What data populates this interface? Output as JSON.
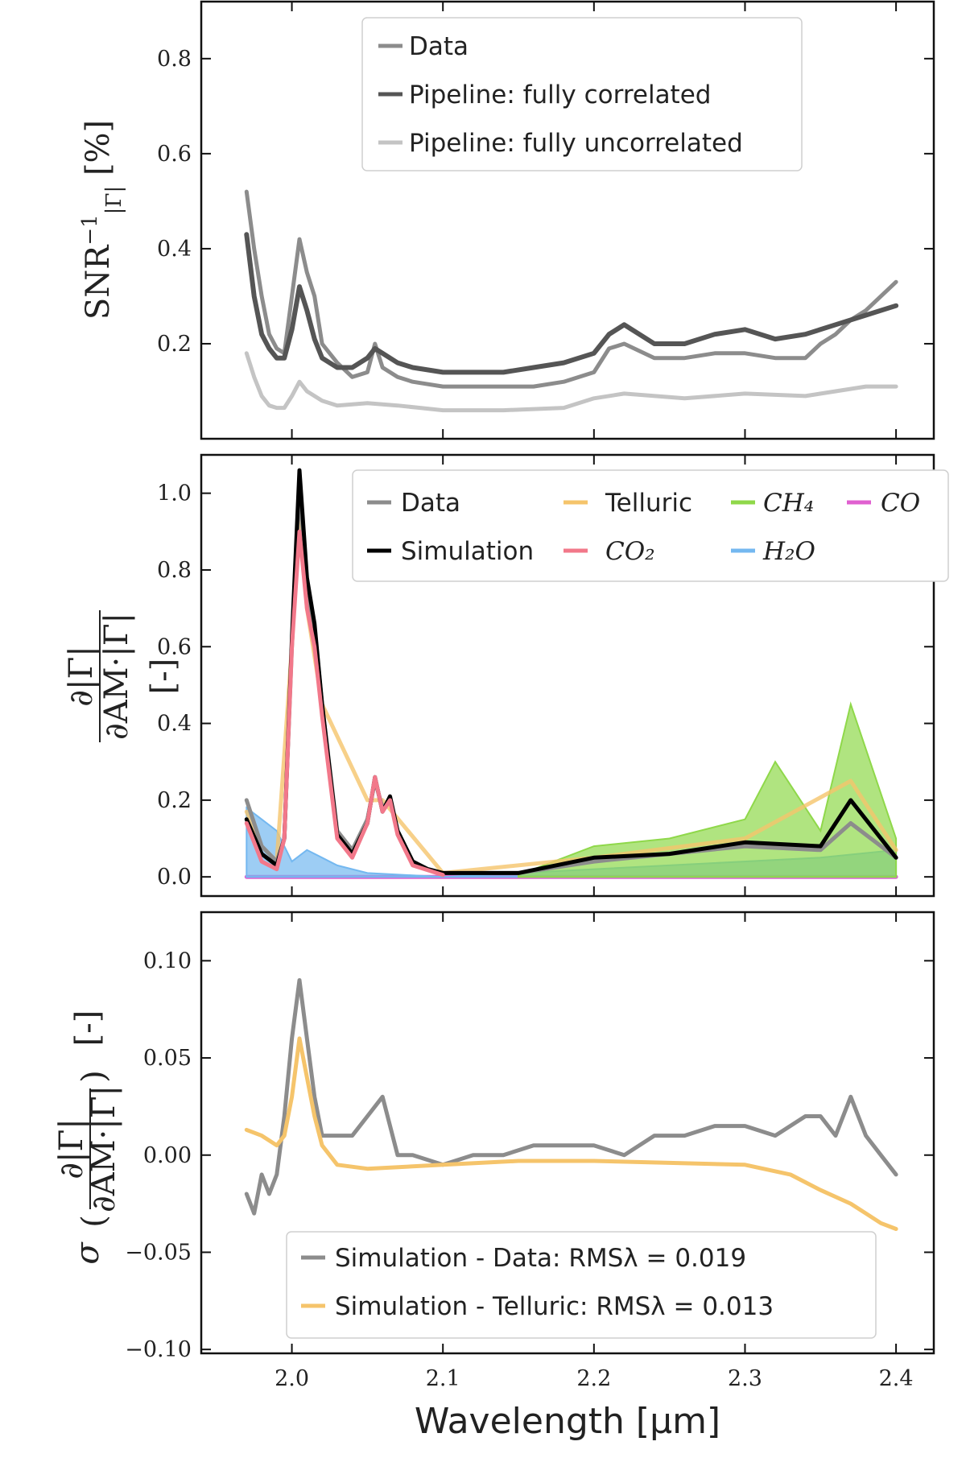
{
  "xaxis": {
    "label": "Wavelength [μm]",
    "range": [
      1.94,
      2.425
    ],
    "ticks": [
      2.0,
      2.1,
      2.2,
      2.3,
      2.4
    ],
    "tick_labels": [
      "2.0",
      "2.1",
      "2.2",
      "2.3",
      "2.4"
    ]
  },
  "chart_data": [
    {
      "type": "line",
      "ylabel": "SNR|Γ|⁻¹ [%]",
      "ylim": [
        0.0,
        0.92
      ],
      "yticks": [
        0.2,
        0.4,
        0.6,
        0.8
      ],
      "ytick_labels": [
        "0.2",
        "0.4",
        "0.6",
        "0.8"
      ],
      "legend_position": "top-center",
      "series": [
        {
          "name": "Data",
          "color": "#8c8c8c",
          "x": [
            1.97,
            1.975,
            1.98,
            1.985,
            1.99,
            1.995,
            2.0,
            2.005,
            2.01,
            2.015,
            2.02,
            2.03,
            2.04,
            2.05,
            2.055,
            2.06,
            2.07,
            2.08,
            2.1,
            2.12,
            2.14,
            2.16,
            2.18,
            2.2,
            2.21,
            2.22,
            2.24,
            2.26,
            2.28,
            2.3,
            2.32,
            2.34,
            2.35,
            2.36,
            2.37,
            2.38,
            2.39,
            2.4
          ],
          "y": [
            0.52,
            0.4,
            0.3,
            0.22,
            0.19,
            0.18,
            0.3,
            0.42,
            0.35,
            0.3,
            0.2,
            0.16,
            0.13,
            0.14,
            0.2,
            0.15,
            0.13,
            0.12,
            0.11,
            0.11,
            0.11,
            0.11,
            0.12,
            0.14,
            0.19,
            0.2,
            0.17,
            0.17,
            0.18,
            0.18,
            0.17,
            0.17,
            0.2,
            0.22,
            0.25,
            0.27,
            0.3,
            0.33
          ]
        },
        {
          "name": "Pipeline: fully correlated",
          "color": "#555555",
          "x": [
            1.97,
            1.975,
            1.98,
            1.985,
            1.99,
            1.995,
            2.0,
            2.005,
            2.01,
            2.015,
            2.02,
            2.03,
            2.04,
            2.05,
            2.055,
            2.06,
            2.07,
            2.08,
            2.1,
            2.12,
            2.14,
            2.16,
            2.18,
            2.2,
            2.21,
            2.22,
            2.24,
            2.26,
            2.28,
            2.3,
            2.32,
            2.34,
            2.36,
            2.38,
            2.4
          ],
          "y": [
            0.43,
            0.3,
            0.22,
            0.19,
            0.17,
            0.17,
            0.23,
            0.32,
            0.27,
            0.21,
            0.17,
            0.15,
            0.15,
            0.17,
            0.19,
            0.18,
            0.16,
            0.15,
            0.14,
            0.14,
            0.14,
            0.15,
            0.16,
            0.18,
            0.22,
            0.24,
            0.2,
            0.2,
            0.22,
            0.23,
            0.21,
            0.22,
            0.24,
            0.26,
            0.28
          ]
        },
        {
          "name": "Pipeline: fully uncorrelated",
          "color": "#c4c4c4",
          "x": [
            1.97,
            1.975,
            1.98,
            1.985,
            1.99,
            1.995,
            2.0,
            2.005,
            2.01,
            2.02,
            2.03,
            2.05,
            2.07,
            2.1,
            2.14,
            2.18,
            2.2,
            2.22,
            2.26,
            2.3,
            2.34,
            2.38,
            2.4
          ],
          "y": [
            0.18,
            0.13,
            0.09,
            0.07,
            0.065,
            0.065,
            0.09,
            0.12,
            0.1,
            0.08,
            0.07,
            0.075,
            0.07,
            0.06,
            0.06,
            0.065,
            0.085,
            0.095,
            0.085,
            0.095,
            0.09,
            0.11,
            0.11
          ]
        }
      ]
    },
    {
      "type": "area",
      "ylabel": "∂|Γ| / ∂AM·|Γ| [-]",
      "ylim": [
        -0.05,
        1.1
      ],
      "yticks": [
        0.0,
        0.2,
        0.4,
        0.6,
        0.8,
        1.0
      ],
      "ytick_labels": [
        "0.0",
        "0.2",
        "0.4",
        "0.6",
        "0.8",
        "1.0"
      ],
      "legend_position": "top-right",
      "series": [
        {
          "name": "Data",
          "color": "#8c8c8c",
          "x": [
            1.97,
            1.98,
            1.99,
            1.995,
            2.0,
            2.005,
            2.01,
            2.015,
            2.02,
            2.03,
            2.04,
            2.05,
            2.055,
            2.06,
            2.065,
            2.07,
            2.08,
            2.09,
            2.1,
            2.15,
            2.2,
            2.25,
            2.3,
            2.35,
            2.37,
            2.4
          ],
          "y": [
            0.2,
            0.08,
            0.04,
            0.1,
            0.6,
            1.02,
            0.75,
            0.65,
            0.45,
            0.12,
            0.07,
            0.15,
            0.25,
            0.18,
            0.2,
            0.12,
            0.04,
            0.02,
            0.01,
            0.01,
            0.04,
            0.06,
            0.08,
            0.07,
            0.14,
            0.05
          ]
        },
        {
          "name": "Simulation",
          "color": "#000000",
          "x": [
            1.97,
            1.98,
            1.99,
            1.995,
            2.0,
            2.005,
            2.01,
            2.015,
            2.02,
            2.03,
            2.04,
            2.05,
            2.055,
            2.06,
            2.065,
            2.07,
            2.08,
            2.09,
            2.1,
            2.15,
            2.2,
            2.25,
            2.3,
            2.35,
            2.37,
            2.4
          ],
          "y": [
            0.15,
            0.06,
            0.03,
            0.1,
            0.62,
            1.06,
            0.78,
            0.66,
            0.45,
            0.11,
            0.06,
            0.14,
            0.26,
            0.17,
            0.21,
            0.12,
            0.04,
            0.02,
            0.01,
            0.01,
            0.05,
            0.06,
            0.09,
            0.08,
            0.2,
            0.05
          ]
        },
        {
          "name": "Telluric",
          "color": "#f5c46b",
          "x": [
            1.97,
            1.98,
            1.99,
            2.0,
            2.005,
            2.01,
            2.02,
            2.05,
            2.06,
            2.1,
            2.2,
            2.3,
            2.37,
            2.4
          ],
          "y": [
            0.17,
            0.08,
            0.04,
            0.6,
            1.0,
            0.7,
            0.45,
            0.2,
            0.2,
            0.01,
            0.05,
            0.1,
            0.25,
            0.07
          ]
        },
        {
          "name": "CO₂",
          "color": "#f2788a",
          "x": [
            1.97,
            1.98,
            1.99,
            1.995,
            2.0,
            2.005,
            2.01,
            2.015,
            2.02,
            2.03,
            2.04,
            2.05,
            2.055,
            2.06,
            2.065,
            2.07,
            2.08,
            2.1
          ],
          "y": [
            0.14,
            0.04,
            0.02,
            0.1,
            0.6,
            0.9,
            0.7,
            0.6,
            0.42,
            0.1,
            0.05,
            0.14,
            0.26,
            0.17,
            0.2,
            0.11,
            0.03,
            0.005
          ]
        },
        {
          "name": "CH₄",
          "color": "#8fd84a",
          "x": [
            2.15,
            2.2,
            2.25,
            2.3,
            2.32,
            2.35,
            2.37,
            2.4
          ],
          "y": [
            0.005,
            0.08,
            0.1,
            0.15,
            0.3,
            0.12,
            0.45,
            0.1
          ]
        },
        {
          "name": "H₂O",
          "color": "#74b8f0",
          "x": [
            1.97,
            1.98,
            1.99,
            2.0,
            2.01,
            2.02,
            2.03,
            2.04,
            2.05,
            2.1,
            2.35,
            2.4
          ],
          "y": [
            0.18,
            0.15,
            0.12,
            0.04,
            0.07,
            0.05,
            0.03,
            0.02,
            0.01,
            0.0,
            0.05,
            0.07
          ]
        },
        {
          "name": "CO",
          "color": "#e060d0",
          "x": [
            1.97,
            2.1,
            2.2,
            2.3,
            2.4
          ],
          "y": [
            0.0,
            0.0,
            0.0,
            0.0,
            0.0
          ]
        }
      ]
    },
    {
      "type": "line",
      "ylabel": "σ(∂|Γ| / ∂AM·|Γ|) [-]",
      "ylim": [
        -0.102,
        0.125
      ],
      "yticks": [
        -0.1,
        -0.05,
        0.0,
        0.05,
        0.1
      ],
      "ytick_labels": [
        "−0.10",
        "−0.05",
        "0.00",
        "0.05",
        "0.10"
      ],
      "legend_position": "bottom-center",
      "series": [
        {
          "name": "Simulation - Data: RMSλ = 0.019",
          "color": "#8c8c8c",
          "x": [
            1.97,
            1.975,
            1.98,
            1.985,
            1.99,
            1.995,
            2.0,
            2.005,
            2.01,
            2.015,
            2.02,
            2.03,
            2.04,
            2.05,
            2.06,
            2.07,
            2.08,
            2.1,
            2.12,
            2.14,
            2.16,
            2.18,
            2.2,
            2.22,
            2.24,
            2.26,
            2.28,
            2.3,
            2.32,
            2.34,
            2.35,
            2.36,
            2.37,
            2.38,
            2.39,
            2.4
          ],
          "y": [
            -0.02,
            -0.03,
            -0.01,
            -0.02,
            -0.01,
            0.02,
            0.06,
            0.09,
            0.06,
            0.03,
            0.01,
            0.01,
            0.01,
            0.02,
            0.03,
            0.0,
            0.0,
            -0.005,
            0.0,
            0.0,
            0.005,
            0.005,
            0.005,
            0.0,
            0.01,
            0.01,
            0.015,
            0.015,
            0.01,
            0.02,
            0.02,
            0.01,
            0.03,
            0.01,
            0.0,
            -0.01
          ]
        },
        {
          "name": "Simulation - Telluric: RMSλ = 0.013",
          "color": "#f5c46b",
          "x": [
            1.97,
            1.98,
            1.99,
            1.995,
            2.0,
            2.005,
            2.01,
            2.015,
            2.02,
            2.03,
            2.05,
            2.1,
            2.15,
            2.2,
            2.25,
            2.3,
            2.33,
            2.35,
            2.37,
            2.38,
            2.39,
            2.4
          ],
          "y": [
            0.013,
            0.01,
            0.005,
            0.01,
            0.03,
            0.06,
            0.04,
            0.02,
            0.005,
            -0.005,
            -0.007,
            -0.005,
            -0.003,
            -0.003,
            -0.004,
            -0.005,
            -0.01,
            -0.018,
            -0.025,
            -0.03,
            -0.035,
            -0.038
          ]
        }
      ]
    }
  ]
}
